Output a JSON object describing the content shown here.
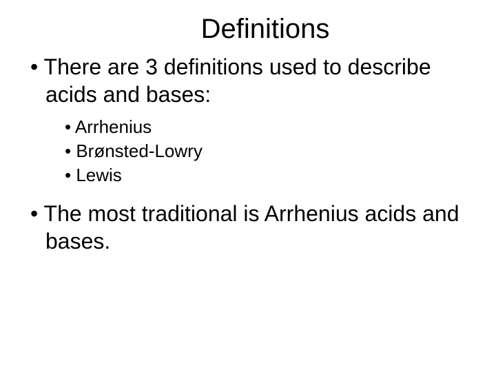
{
  "title": "Definitions",
  "main_bullets": [
    "There are 3 definitions used to describe acids and bases:",
    "The most traditional is Arrhenius acids and bases."
  ],
  "sub_bullets": [
    "Arrhenius",
    "Brønsted-Lowry",
    "Lewis"
  ],
  "colors": {
    "background": "#ffffff",
    "text": "#000000"
  },
  "fonts": {
    "family": "Arial",
    "title_size": 40,
    "main_size": 32,
    "sub_size": 26
  }
}
